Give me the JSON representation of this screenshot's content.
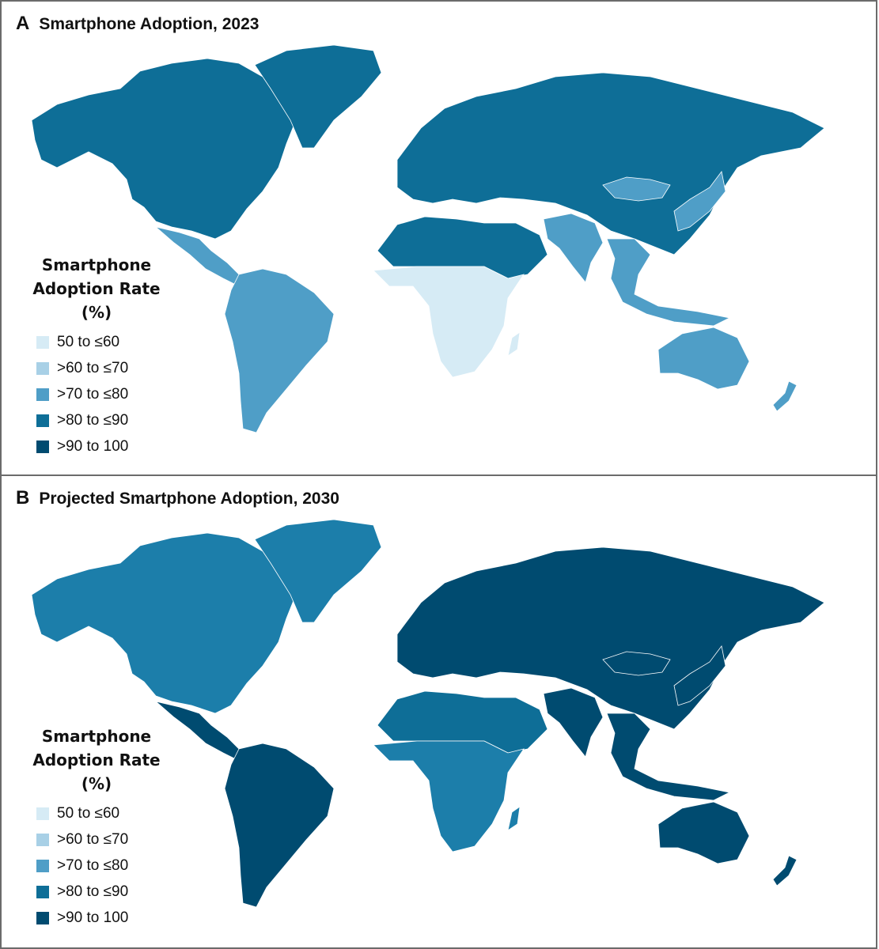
{
  "panels": [
    {
      "letter": "A",
      "title": "Smartphone Adoption, 2023",
      "regions": {
        "north_america": "#0e6e97",
        "greenland": "#0e6e97",
        "mexico_central_america": "#4f9ec7",
        "south_america": "#4f9ec7",
        "europe_russia_china": "#0e6e97",
        "mongolia": "#4f9ec7",
        "north_africa_middle_east": "#0e6e97",
        "sub_saharan_africa": "#d6ebf5",
        "madagascar": "#d6ebf5",
        "south_asia": "#4f9ec7",
        "southeast_asia": "#4f9ec7",
        "japan_korea": "#4f9ec7",
        "australia": "#4f9ec7",
        "new_zealand": "#4f9ec7"
      }
    },
    {
      "letter": "B",
      "title": "Projected Smartphone Adoption, 2030",
      "regions": {
        "north_america": "#1c7eaa",
        "greenland": "#1c7eaa",
        "mexico_central_america": "#004b70",
        "south_america": "#004b70",
        "europe_russia_china": "#004b70",
        "mongolia": "#004b70",
        "north_africa_middle_east": "#0e6e97",
        "sub_saharan_africa": "#1c7eaa",
        "madagascar": "#1c7eaa",
        "south_asia": "#004b70",
        "southeast_asia": "#004b70",
        "japan_korea": "#004b70",
        "australia": "#004b70",
        "new_zealand": "#004b70"
      }
    }
  ],
  "legend": {
    "title_line1": "Smartphone",
    "title_line2": "Adoption Rate",
    "title_line3": "(%)",
    "items": [
      {
        "label": "50 to ≤60",
        "color": "#d6ebf5"
      },
      {
        "label": ">60 to ≤70",
        "color": "#a8d0e6"
      },
      {
        "label": ">70 to ≤80",
        "color": "#4f9ec7"
      },
      {
        "label": ">80 to ≤90",
        "color": "#0e6e97"
      },
      {
        "label": ">90 to 100",
        "color": "#004b70"
      }
    ]
  }
}
